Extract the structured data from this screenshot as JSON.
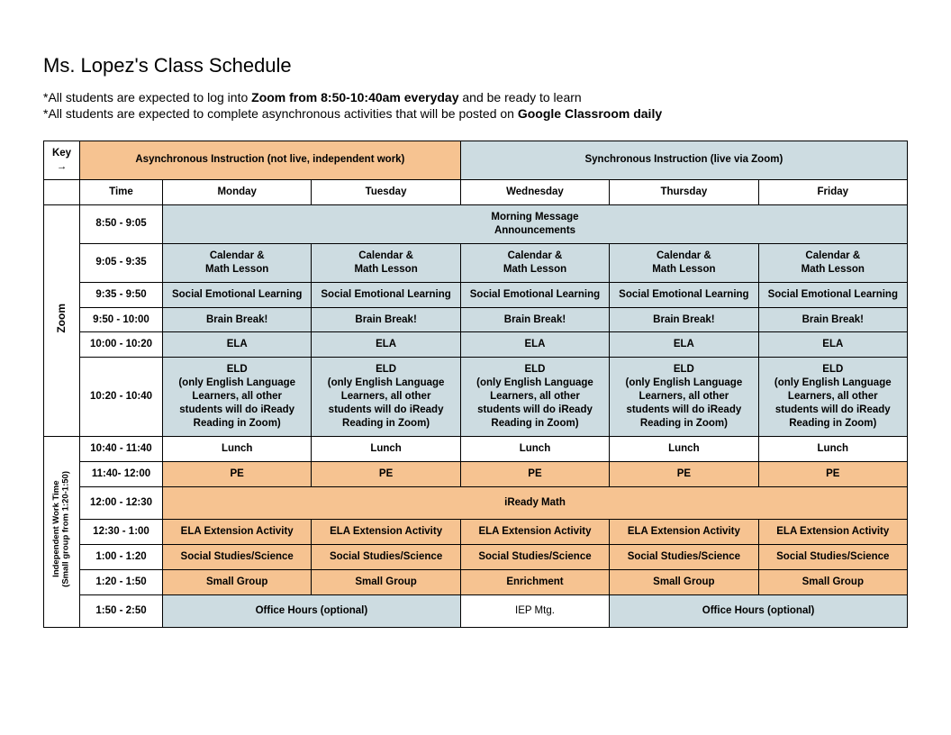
{
  "title": "Ms. Lopez's Class Schedule",
  "notes": {
    "line1_pre": "*All students are expected to log into ",
    "line1_bold": "Zoom from 8:50-10:40am everyday",
    "line1_post": " and be ready to learn",
    "line2_pre": "*All students are expected to complete asynchronous activities that will be posted on ",
    "line2_bold": "Google Classroom daily",
    "line2_post": ""
  },
  "colors": {
    "async": "#f6c391",
    "sync": "#cddce1",
    "border": "#000000",
    "background": "#ffffff"
  },
  "key": {
    "label_l1": "Key",
    "label_l2": "→",
    "async": "Asynchronous Instruction (not live, independent work)",
    "sync": "Synchronous Instruction (live via Zoom)"
  },
  "headers": {
    "time": "Time",
    "mon": "Monday",
    "tue": "Tuesday",
    "wed": "Wednesday",
    "thu": "Thursday",
    "fri": "Friday"
  },
  "side": {
    "zoom": "Zoom",
    "independent_l1": "Independent Work Time",
    "independent_l2": "(Small group from 1:20-1:50)"
  },
  "rows": {
    "r1": {
      "time": "8:50 - 9:05",
      "merged_l1": "Morning Message",
      "merged_l2": "Announcements"
    },
    "r2": {
      "time": "9:05 - 9:35",
      "cell_l1": "Calendar &",
      "cell_l2": "Math Lesson"
    },
    "r3": {
      "time": "9:35 - 9:50",
      "cell": "Social Emotional Learning"
    },
    "r4": {
      "time": "9:50 - 10:00",
      "cell": "Brain Break!"
    },
    "r5": {
      "time": "10:00 - 10:20",
      "cell": "ELA"
    },
    "r6": {
      "time": "10:20 - 10:40",
      "cell_l1": "ELD",
      "cell_l2": "(only English Language",
      "cell_l3": "Learners, all other",
      "cell_l4": "students will do iReady",
      "cell_l5": "Reading in Zoom)"
    },
    "r7": {
      "time": "10:40 - 11:40",
      "cell": "Lunch"
    },
    "r8": {
      "time": "11:40- 12:00",
      "cell": "PE"
    },
    "r9": {
      "time": "12:00 - 12:30",
      "merged": "iReady Math"
    },
    "r10": {
      "time": "12:30 - 1:00",
      "cell": "ELA Extension Activity"
    },
    "r11": {
      "time": "1:00 - 1:20",
      "cell": "Social Studies/Science"
    },
    "r12": {
      "time": "1:20 - 1:50",
      "default": "Small Group",
      "wed": "Enrichment"
    },
    "r13": {
      "time": "1:50 - 2:50",
      "office": "Office Hours (optional)",
      "wed": "IEP Mtg."
    }
  }
}
